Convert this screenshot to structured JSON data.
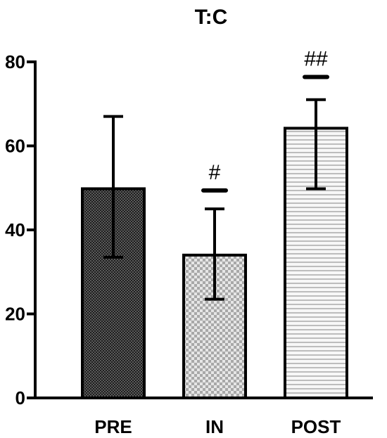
{
  "chart_data": {
    "type": "bar",
    "title": "T:C",
    "xlabel": "",
    "ylabel": "",
    "ylim": [
      0,
      80
    ],
    "yticks": [
      0,
      20,
      40,
      60,
      80
    ],
    "categories": [
      "PRE",
      "IN",
      "POST"
    ],
    "values": [
      49.8,
      34.0,
      64.2
    ],
    "error_upper": [
      67.0,
      45.0,
      71.0
    ],
    "error_lower": [
      33.5,
      23.5,
      49.8
    ],
    "significance": [
      "",
      "#",
      "##"
    ],
    "significance_bar_level": [
      null,
      49.4,
      76.4
    ],
    "patterns": [
      "dense-check-dark",
      "check-light",
      "horizontal-lines"
    ],
    "grid": false,
    "legend": "none"
  }
}
